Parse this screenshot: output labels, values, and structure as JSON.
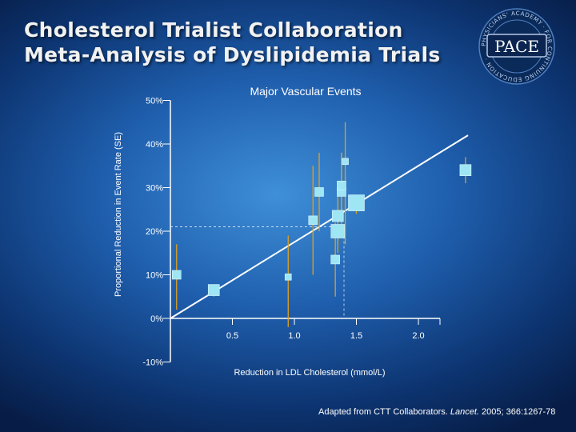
{
  "slide": {
    "title_line1": "Cholesterol Trialist Collaboration",
    "title_line2": "Meta-Analysis of Dyslipidemia Trials",
    "logo_text": "PACE",
    "logo_ring_text": "PHYSICIANS' ACADEMY · FOR CONTINUING EDUCATION ·",
    "source_prefix": "Adapted from CTT Collaborators.",
    "source_journal": "Lancet.",
    "source_suffix": "2005; 366:1267-78"
  },
  "colors": {
    "accent": "#9fe6f5",
    "whisker": "#e0a020",
    "line": "#ffffff",
    "background_center": "#3f8fd8",
    "background_edge": "#071d47"
  },
  "chart_data": {
    "type": "scatter",
    "title": "Major Vascular Events",
    "xlabel": "Reduction in LDL Cholesterol (mmol/L)",
    "ylabel": "Proportional Reduction in Event Rate (SE)",
    "xticks": [
      "0.5",
      "1.0",
      "1.5",
      "2.0"
    ],
    "yticks": [
      "-10%",
      "0%",
      "10%",
      "20%",
      "30%",
      "40%",
      "50%"
    ],
    "ylim": [
      -10,
      50
    ],
    "trend_line": {
      "x": [
        0,
        2.4
      ],
      "y": [
        0,
        42
      ]
    },
    "reference_point": {
      "x": 1.4,
      "y": 21
    },
    "points": [
      {
        "x": 0.05,
        "y": 10,
        "low": 2,
        "high": 17,
        "weight": 2
      },
      {
        "x": 0.35,
        "y": 6.5,
        "low": 5,
        "high": 7,
        "weight": 3
      },
      {
        "x": 0.95,
        "y": 9.5,
        "low": -2,
        "high": 19,
        "weight": 1
      },
      {
        "x": 1.15,
        "y": 22.5,
        "low": 10,
        "high": 35,
        "weight": 2
      },
      {
        "x": 1.2,
        "y": 29,
        "low": 20,
        "high": 38,
        "weight": 2
      },
      {
        "x": 1.33,
        "y": 13.5,
        "low": 5,
        "high": 22,
        "weight": 2
      },
      {
        "x": 1.35,
        "y": 23.5,
        "low": 17,
        "high": 30,
        "weight": 3
      },
      {
        "x": 1.35,
        "y": 20,
        "low": 15,
        "high": 25,
        "weight": 4
      },
      {
        "x": 1.38,
        "y": 29,
        "low": 20,
        "high": 38,
        "weight": 2
      },
      {
        "x": 1.38,
        "y": 30.5,
        "low": 22,
        "high": 38,
        "weight": 2
      },
      {
        "x": 1.41,
        "y": 36,
        "low": 17,
        "high": 45,
        "weight": 1
      },
      {
        "x": 1.5,
        "y": 26.5,
        "low": 24,
        "high": 28,
        "weight": 5
      },
      {
        "x": 2.38,
        "y": 34,
        "low": 31,
        "high": 37,
        "weight": 3
      }
    ]
  }
}
